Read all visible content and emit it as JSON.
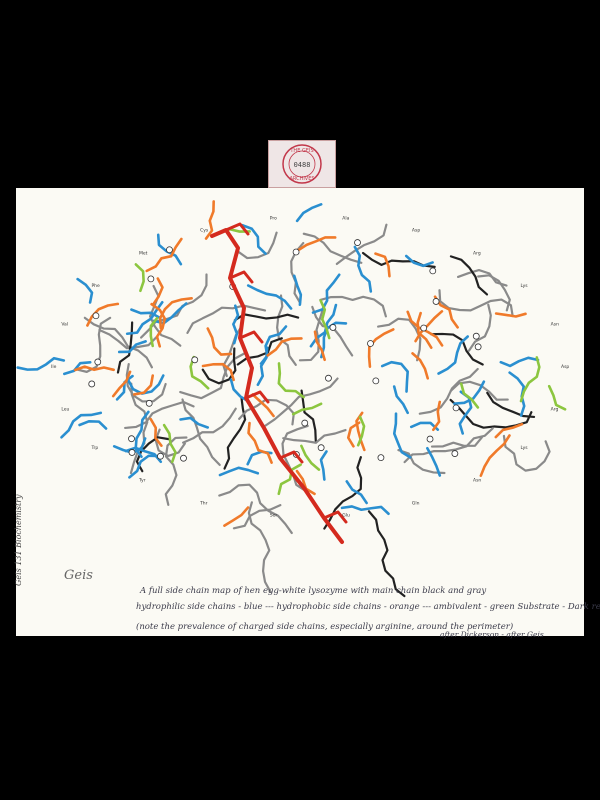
{
  "stamp": {
    "arc_top": "THE GEIS",
    "number": "0488",
    "arc_bottom": "ARCHIVES"
  },
  "colors": {
    "background": "#000000",
    "paper": "#fbfaf4",
    "main_chain_black": "#222222",
    "main_chain_gray": "#8a8a8a",
    "hydrophilic_blue": "#2a8fd0",
    "hydrophobic_orange": "#f07a2a",
    "ambivalent_green": "#8cc63f",
    "substrate_red": "#d42a1e"
  },
  "side_labels": [
    "Asp",
    "Arg",
    "Lys",
    "Asn",
    "Gln",
    "Glu",
    "Ser",
    "Thr",
    "Tyr",
    "Trp",
    "Leu",
    "Ile",
    "Val",
    "Phe",
    "Met",
    "Cys",
    "Pro",
    "Ala"
  ],
  "notes": {
    "signature": "Geis",
    "margin_note": "Geis 131 Biochemistry",
    "line1": "A full side chain map of hen egg-white lysozyme with main chain black and gray",
    "line2": "hydrophilic side chains - blue --- hydrophobic side chains - orange --- ambivalent - green    Substrate - Dark red",
    "line3": "(note the prevalence of charged side chains, especially arginine, around the perimeter)",
    "attribution": "after Dickerson - after Geis"
  }
}
